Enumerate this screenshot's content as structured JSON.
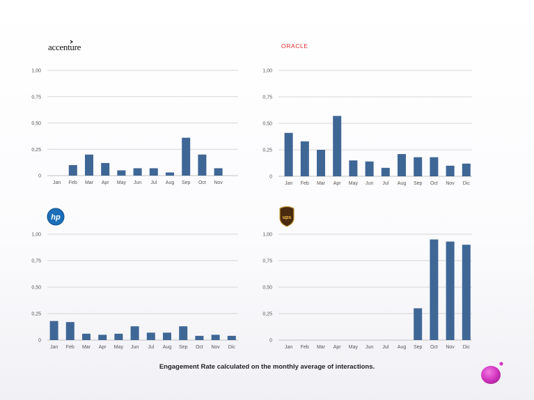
{
  "caption": "Engagement Rate calculated on the monthly average of interactions.",
  "bar_color": "#3f6796",
  "grid_color": "#d6d6d6",
  "panels": [
    {
      "logo_icon": "accenture-logo",
      "logo_text": "accenture",
      "chart_data": {
        "type": "bar",
        "categories": [
          "Jan",
          "Feb",
          "Mar",
          "Apr",
          "May",
          "Jun",
          "Jul",
          "Aug",
          "Sep",
          "Oct",
          "Nov"
        ],
        "values": [
          0,
          0.1,
          0.2,
          0.12,
          0.05,
          0.07,
          0.07,
          0.03,
          0.36,
          0.2,
          0.07
        ],
        "ylim": [
          0,
          1
        ],
        "yticks": [
          "0",
          "0,25",
          "0,50",
          "0,75",
          "1,00"
        ],
        "grid": true
      }
    },
    {
      "logo_icon": "oracle-logo",
      "logo_text": "ORACLE",
      "chart_data": {
        "type": "bar",
        "categories": [
          "Jan",
          "Feb",
          "Mar",
          "Apr",
          "May",
          "Jun",
          "Jul",
          "Aug",
          "Sep",
          "Oct",
          "Nov",
          "Dic"
        ],
        "values": [
          0.41,
          0.33,
          0.25,
          0.57,
          0.15,
          0.14,
          0.08,
          0.21,
          0.18,
          0.18,
          0.1,
          0.12
        ],
        "ylim": [
          0,
          1
        ],
        "yticks": [
          "0",
          "0,25",
          "0,50",
          "0,75",
          "1,00"
        ],
        "grid": true
      }
    },
    {
      "logo_icon": "hp-logo",
      "logo_text": "hp",
      "chart_data": {
        "type": "bar",
        "categories": [
          "Jan",
          "Feb",
          "Mar",
          "Apr",
          "May",
          "Jun",
          "Jul",
          "Aug",
          "Sep",
          "Oct",
          "Nov",
          "Dic"
        ],
        "values": [
          0.18,
          0.17,
          0.06,
          0.05,
          0.06,
          0.13,
          0.07,
          0.07,
          0.13,
          0.04,
          0.05,
          0.04
        ],
        "ylim": [
          0,
          1
        ],
        "yticks": [
          "0",
          "0,25",
          "0,50",
          "0,75",
          "1,00"
        ],
        "grid": true
      }
    },
    {
      "logo_icon": "ups-logo",
      "logo_text": "ups",
      "chart_data": {
        "type": "bar",
        "categories": [
          "Jan",
          "Feb",
          "Mar",
          "Apr",
          "May",
          "Jun",
          "Jul",
          "Aug",
          "Sep",
          "Oct",
          "Nov",
          "Dic"
        ],
        "values": [
          0,
          0,
          0,
          0,
          0,
          0,
          0,
          0,
          0.3,
          0.95,
          0.93,
          0.9
        ],
        "ylim": [
          0,
          1
        ],
        "yticks": [
          "0",
          "0,25",
          "0,50",
          "0,75",
          "1,00"
        ],
        "grid": true
      }
    }
  ]
}
